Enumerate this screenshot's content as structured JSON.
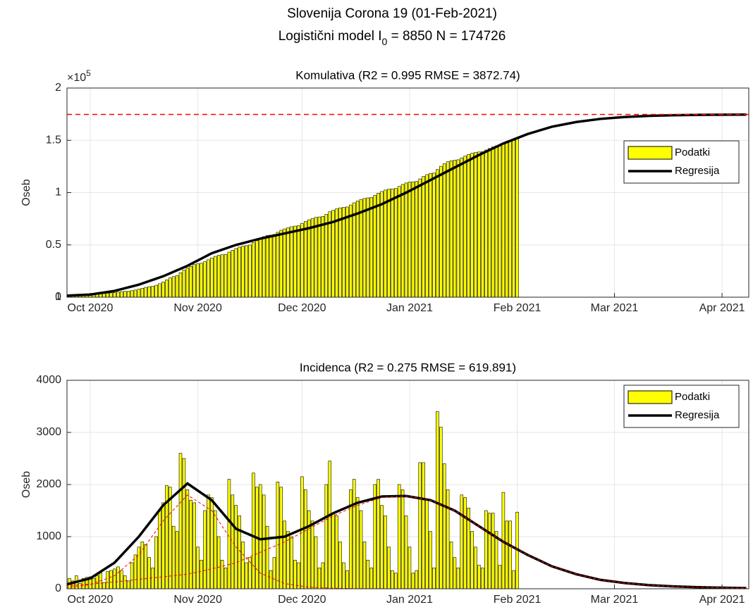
{
  "title": "Slovenija Corona 19 (01-Feb-2021)",
  "subtitle": {
    "text": "Logistični model I",
    "subscript": "0",
    "rest": " = 8850  N = 174726"
  },
  "chart_data": [
    {
      "type": "bar",
      "title": "Komulativa (R2 = 0.995  RMSE = 3872.74)",
      "ylabel": "Oseb",
      "y_exponent": {
        "base": "×10",
        "power": "5"
      },
      "xlim": [
        -6.7,
        189.7
      ],
      "ylim": [
        0,
        200000
      ],
      "grid": true,
      "legend": "right",
      "xticks": [
        {
          "value": 0,
          "label": "Oct 2020"
        },
        {
          "value": 31,
          "label": "Nov 2020"
        },
        {
          "value": 61,
          "label": "Dec 2020"
        },
        {
          "value": 92,
          "label": "Jan 2021"
        },
        {
          "value": 123,
          "label": "Feb 2021"
        },
        {
          "value": 151,
          "label": "Mar 2021"
        },
        {
          "value": 182,
          "label": "Apr 2021"
        }
      ],
      "yticks": [
        0,
        {
          "value": 50000,
          "label": "0.5"
        },
        1,
        {
          "value": 100000,
          "label": "1"
        },
        {
          "value": 150000,
          "label": "1.5"
        },
        {
          "value": 200000,
          "label": "2"
        }
      ],
      "reference_line": {
        "value": 174726,
        "color": "#ff0000"
      },
      "series": [
        {
          "name": "Podatki",
          "type": "bar",
          "color": "#ffff00",
          "x": [
            -6,
            -5,
            -4,
            -3,
            -2,
            -1,
            0,
            1,
            2,
            3,
            4,
            5,
            6,
            7,
            8,
            9,
            10,
            11,
            12,
            13,
            14,
            15,
            16,
            17,
            18,
            19,
            20,
            21,
            22,
            23,
            24,
            25,
            26,
            27,
            28,
            29,
            30,
            31,
            32,
            33,
            34,
            35,
            36,
            37,
            38,
            39,
            40,
            41,
            42,
            43,
            44,
            45,
            46,
            47,
            48,
            49,
            50,
            51,
            52,
            53,
            54,
            55,
            56,
            57,
            58,
            59,
            60,
            61,
            62,
            63,
            64,
            65,
            66,
            67,
            68,
            69,
            70,
            71,
            72,
            73,
            74,
            75,
            76,
            77,
            78,
            79,
            80,
            81,
            82,
            83,
            84,
            85,
            86,
            87,
            88,
            89,
            90,
            91,
            92,
            93,
            94,
            95,
            96,
            97,
            98,
            99,
            100,
            101,
            102,
            103,
            104,
            105,
            106,
            107,
            108,
            109,
            110,
            111,
            112,
            113,
            114,
            115,
            116,
            117,
            118,
            119,
            120,
            121,
            122,
            123
          ],
          "values": [
            1500,
            1650,
            1850,
            1950,
            2150,
            2350,
            2600,
            2800,
            3050,
            3350,
            3470,
            3800,
            4150,
            4530,
            4950,
            5300,
            5550,
            5700,
            6200,
            6850,
            7650,
            8550,
            9400,
            10000,
            10400,
            11400,
            12900,
            14550,
            16530,
            18480,
            19680,
            20780,
            23380,
            25880,
            27780,
            29480,
            31130,
            31930,
            32480,
            33980,
            35780,
            37530,
            39030,
            40030,
            40580,
            40980,
            43080,
            44880,
            46480,
            47880,
            48780,
            49280,
            49880,
            52100,
            54050,
            56050,
            57850,
            59050,
            59400,
            60000,
            62050,
            64000,
            65300,
            66400,
            67400,
            67950,
            68450,
            70600,
            72500,
            74000,
            75300,
            76300,
            76700,
            77200,
            79200,
            81650,
            83100,
            84500,
            85400,
            85900,
            86250,
            88150,
            90250,
            92000,
            93500,
            94400,
            94950,
            95350,
            97350,
            99450,
            101050,
            102450,
            103250,
            103600,
            103900,
            105900,
            107800,
            109200,
            110000,
            110300,
            110650,
            113070,
            115490,
            117190,
            118290,
            118690,
            122090,
            125190,
            127590,
            129490,
            130390,
            130990,
            131390,
            133190,
            134940,
            136490,
            137590,
            138390,
            138840,
            139240,
            140740,
            142190,
            143640,
            144740,
            145190,
            147040,
            148340,
            149640,
            149990,
            151460
          ]
        },
        {
          "name": "Regresija",
          "type": "line",
          "color": "#000000",
          "x": [
            -7,
            0,
            7,
            14,
            21,
            28,
            35,
            42,
            49,
            56,
            63,
            70,
            77,
            84,
            91,
            98,
            105,
            112,
            119,
            126,
            133,
            140,
            147,
            154,
            161,
            168,
            175,
            182,
            189
          ],
          "values": [
            1500,
            2500,
            6000,
            12000,
            20000,
            30000,
            42000,
            50000,
            56000,
            61000,
            66000,
            72000,
            80000,
            89000,
            100000,
            112000,
            124000,
            136000,
            147000,
            156000,
            163000,
            167500,
            170500,
            172300,
            173400,
            174000,
            174300,
            174500,
            174600
          ]
        }
      ]
    },
    {
      "type": "bar",
      "title": "Incidenca (R2 = 0.275  RMSE = 619.891)",
      "ylabel": "Oseb",
      "xlim": [
        -6.7,
        189.7
      ],
      "ylim": [
        0,
        4000
      ],
      "grid": true,
      "legend": "right",
      "xticks": [
        {
          "value": 0,
          "label": "Oct 2020"
        },
        {
          "value": 31,
          "label": "Nov 2020"
        },
        {
          "value": 61,
          "label": "Dec 2020"
        },
        {
          "value": 92,
          "label": "Jan 2021"
        },
        {
          "value": 123,
          "label": "Feb 2021"
        },
        {
          "value": 151,
          "label": "Mar 2021"
        },
        {
          "value": 182,
          "label": "Apr 2021"
        }
      ],
      "yticks": [
        0,
        1000,
        2000,
        3000,
        4000
      ],
      "series": [
        {
          "name": "Podatki",
          "type": "bar",
          "color": "#ffff00",
          "x": [
            -6,
            -5,
            -4,
            -3,
            -2,
            -1,
            0,
            1,
            2,
            3,
            4,
            5,
            6,
            7,
            8,
            9,
            10,
            11,
            12,
            13,
            14,
            15,
            16,
            17,
            18,
            19,
            20,
            21,
            22,
            23,
            24,
            25,
            26,
            27,
            28,
            29,
            30,
            31,
            32,
            33,
            34,
            35,
            36,
            37,
            38,
            39,
            40,
            41,
            42,
            43,
            44,
            45,
            46,
            47,
            48,
            49,
            50,
            51,
            52,
            53,
            54,
            55,
            56,
            57,
            58,
            59,
            60,
            61,
            62,
            63,
            64,
            65,
            66,
            67,
            68,
            69,
            70,
            71,
            72,
            73,
            74,
            75,
            76,
            77,
            78,
            79,
            80,
            81,
            82,
            83,
            84,
            85,
            86,
            87,
            88,
            89,
            90,
            91,
            92,
            93,
            94,
            95,
            96,
            97,
            98,
            99,
            100,
            101,
            102,
            103,
            104,
            105,
            106,
            107,
            108,
            109,
            110,
            111,
            112,
            113,
            114,
            115,
            116,
            117,
            118,
            119,
            120,
            121,
            122,
            123
          ],
          "values": [
            200,
            150,
            250,
            100,
            200,
            220,
            230,
            200,
            250,
            300,
            120,
            330,
            350,
            380,
            420,
            350,
            250,
            150,
            500,
            650,
            800,
            900,
            850,
            600,
            400,
            1000,
            1500,
            1650,
            1980,
            1950,
            1200,
            1100,
            2600,
            2500,
            1900,
            1700,
            1650,
            800,
            550,
            1500,
            1800,
            1750,
            1500,
            1000,
            550,
            400,
            2100,
            1800,
            1600,
            1400,
            900,
            500,
            600,
            2220,
            1950,
            2000,
            1800,
            1200,
            350,
            600,
            2050,
            1950,
            1300,
            1100,
            1000,
            550,
            500,
            2150,
            1900,
            1500,
            1300,
            1000,
            400,
            500,
            2000,
            2450,
            1450,
            1400,
            900,
            500,
            350,
            1900,
            2100,
            1750,
            1500,
            900,
            550,
            400,
            2000,
            2100,
            1600,
            1400,
            800,
            350,
            300,
            2000,
            1900,
            1400,
            800,
            300,
            350,
            2420,
            2420,
            1700,
            1100,
            400,
            3400,
            3100,
            2400,
            1900,
            900,
            600,
            400,
            1800,
            1750,
            1550,
            1100,
            800,
            450,
            400,
            1500,
            1450,
            1450,
            1100,
            450,
            1850,
            1300,
            1300,
            350,
            1470
          ]
        },
        {
          "name": "Regresija",
          "type": "line",
          "color": "#000000",
          "x": [
            -7,
            0,
            7,
            14,
            21,
            28,
            35,
            42,
            49,
            56,
            63,
            70,
            77,
            84,
            91,
            98,
            105,
            112,
            119,
            126,
            133,
            140,
            147,
            154,
            161,
            168,
            175,
            182,
            189
          ],
          "values": [
            80,
            200,
            500,
            1000,
            1600,
            2020,
            1700,
            1150,
            950,
            1000,
            1200,
            1450,
            1650,
            1770,
            1780,
            1700,
            1500,
            1200,
            900,
            650,
            430,
            280,
            170,
            110,
            70,
            45,
            30,
            20,
            12
          ]
        },
        {
          "type": "line",
          "color": "#ff0000",
          "linestyle": "dashed",
          "x": [
            -7,
            0,
            7,
            14,
            21,
            28,
            35,
            42,
            49,
            56,
            63,
            70,
            77,
            84,
            91,
            98,
            105,
            112,
            119,
            126,
            133,
            140,
            147,
            154,
            161,
            168,
            175,
            182,
            189
          ],
          "values": [
            20,
            80,
            250,
            650,
            1300,
            1800,
            1500,
            800,
            300,
            100,
            30,
            10,
            3,
            1,
            0,
            0,
            0,
            0,
            0,
            0,
            0,
            0,
            0,
            0,
            0,
            0,
            0,
            0,
            0
          ]
        },
        {
          "type": "line",
          "color": "#ff0000",
          "linestyle": "dashed",
          "x": [
            -7,
            0,
            7,
            14,
            21,
            28,
            35,
            42,
            49,
            56,
            63,
            70,
            77,
            84,
            91,
            98,
            105,
            112,
            119,
            126,
            133,
            140,
            147,
            154,
            161,
            168,
            175,
            182,
            189
          ],
          "values": [
            60,
            90,
            130,
            180,
            230,
            280,
            380,
            500,
            700,
            900,
            1150,
            1400,
            1600,
            1750,
            1780,
            1700,
            1500,
            1200,
            900,
            650,
            430,
            280,
            170,
            110,
            70,
            45,
            30,
            20,
            12
          ]
        }
      ]
    }
  ]
}
